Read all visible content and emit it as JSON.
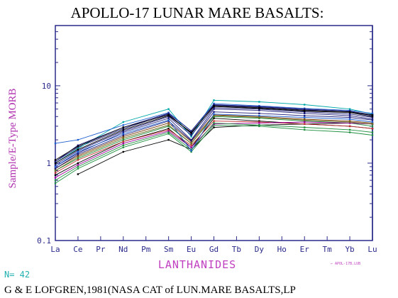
{
  "chart_data": {
    "type": "line",
    "title": "APOLLO-17 LUNAR MARE BASALTS:",
    "xlabel": "LANTHANIDES",
    "ylabel": "Sample/E-Type MORB",
    "y_scale": "log",
    "ylim": [
      0.1,
      60
    ],
    "y_tick_labels": [
      "0.1",
      "1",
      "10"
    ],
    "categories": [
      "La",
      "Ce",
      "Pr",
      "Nd",
      "Pm",
      "Sm",
      "Eu",
      "Gd",
      "Tb",
      "Dy",
      "Ho",
      "Er",
      "Tm",
      "Yb",
      "Lu"
    ],
    "n_label": "N= 42",
    "legend_text": "← APOL-17B.LUB",
    "source": "G & E LOFGREN,1981(NASA CAT of LUN.MARE BASALTS,LP",
    "series": [
      {
        "color": "#1a1a7a",
        "values": [
          1.05,
          1.6,
          null,
          2.8,
          null,
          4.3,
          2.4,
          5.6,
          null,
          5.3,
          null,
          4.9,
          null,
          4.6,
          4.1
        ]
      },
      {
        "color": "#00a8a8",
        "values": [
          1.0,
          1.55,
          null,
          3.4,
          null,
          5.0,
          2.2,
          6.5,
          null,
          6.2,
          null,
          5.7,
          null,
          5.0,
          4.3
        ]
      },
      {
        "color": "#2060d0",
        "values": [
          1.8,
          2.0,
          null,
          3.1,
          null,
          4.5,
          2.6,
          5.9,
          null,
          5.5,
          null,
          5.1,
          null,
          4.8,
          4.4
        ]
      },
      {
        "color": "#000000",
        "values": [
          0.7,
          1.0,
          null,
          1.9,
          null,
          2.8,
          1.6,
          3.8,
          null,
          3.5,
          null,
          3.2,
          null,
          3.0,
          2.8
        ]
      },
      {
        "color": "#000000",
        "values": [
          null,
          0.72,
          null,
          1.4,
          null,
          2.0,
          1.5,
          2.9,
          null,
          3.1,
          null,
          3.2,
          null,
          3.3,
          3.2
        ]
      },
      {
        "color": "#1a1a7a",
        "values": [
          0.95,
          1.45,
          null,
          2.6,
          null,
          4.0,
          2.3,
          5.2,
          null,
          5.0,
          null,
          4.6,
          null,
          4.3,
          3.9
        ]
      },
      {
        "color": "#1a1a7a",
        "values": [
          0.9,
          1.35,
          null,
          2.5,
          null,
          3.8,
          2.0,
          5.0,
          null,
          4.8,
          null,
          4.4,
          null,
          4.1,
          3.7
        ]
      },
      {
        "color": "#000000",
        "values": [
          1.0,
          1.5,
          null,
          2.7,
          null,
          4.1,
          2.5,
          5.4,
          null,
          5.1,
          null,
          4.7,
          null,
          4.5,
          4.0
        ]
      },
      {
        "color": "#209040",
        "values": [
          0.55,
          0.85,
          null,
          1.6,
          null,
          2.4,
          1.4,
          3.1,
          null,
          3.0,
          null,
          2.7,
          null,
          2.5,
          2.3
        ]
      },
      {
        "color": "#209040",
        "values": [
          0.8,
          1.15,
          null,
          2.0,
          null,
          3.0,
          1.8,
          4.0,
          null,
          3.8,
          null,
          3.5,
          null,
          3.3,
          3.0
        ]
      },
      {
        "color": "#7a3d0a",
        "values": [
          0.85,
          1.25,
          null,
          2.2,
          null,
          3.3,
          1.9,
          4.2,
          null,
          4.0,
          null,
          3.7,
          null,
          3.5,
          3.3
        ]
      },
      {
        "color": "#c03030",
        "values": [
          0.75,
          1.1,
          null,
          1.9,
          null,
          2.7,
          1.7,
          3.5,
          null,
          3.4,
          null,
          3.2,
          null,
          3.0,
          2.8
        ]
      },
      {
        "color": "#a000a0",
        "values": [
          0.65,
          0.95,
          null,
          1.8,
          null,
          2.6,
          1.6,
          3.2,
          null,
          3.3,
          null,
          3.4,
          null,
          3.3,
          3.2
        ]
      },
      {
        "color": "#1a1a7a",
        "values": [
          1.05,
          1.7,
          null,
          2.9,
          null,
          4.4,
          2.6,
          5.7,
          null,
          5.4,
          null,
          5.0,
          null,
          4.7,
          4.2
        ]
      },
      {
        "color": "#209040",
        "values": [
          0.6,
          0.9,
          null,
          1.7,
          null,
          2.5,
          1.5,
          3.3,
          null,
          3.1,
          null,
          2.9,
          null,
          2.7,
          2.5
        ]
      },
      {
        "color": "#1a1a7a",
        "values": [
          0.85,
          1.3,
          null,
          2.3,
          null,
          3.5,
          1.95,
          4.6,
          null,
          4.4,
          null,
          4.1,
          null,
          3.9,
          3.6
        ]
      },
      {
        "color": "#000000",
        "values": [
          1.1,
          1.65,
          null,
          2.9,
          null,
          4.2,
          2.45,
          5.5,
          null,
          5.2,
          null,
          4.8,
          null,
          4.6,
          4.2
        ]
      },
      {
        "color": "#6a6a20",
        "values": [
          0.8,
          1.2,
          null,
          2.1,
          null,
          3.1,
          1.8,
          4.1,
          null,
          3.9,
          null,
          3.6,
          null,
          3.4,
          3.2
        ]
      },
      {
        "color": "#2060d0",
        "values": [
          0.9,
          1.4,
          null,
          2.4,
          null,
          3.6,
          1.45,
          4.3,
          null,
          4.1,
          null,
          3.9,
          null,
          3.7,
          3.4
        ]
      }
    ]
  }
}
